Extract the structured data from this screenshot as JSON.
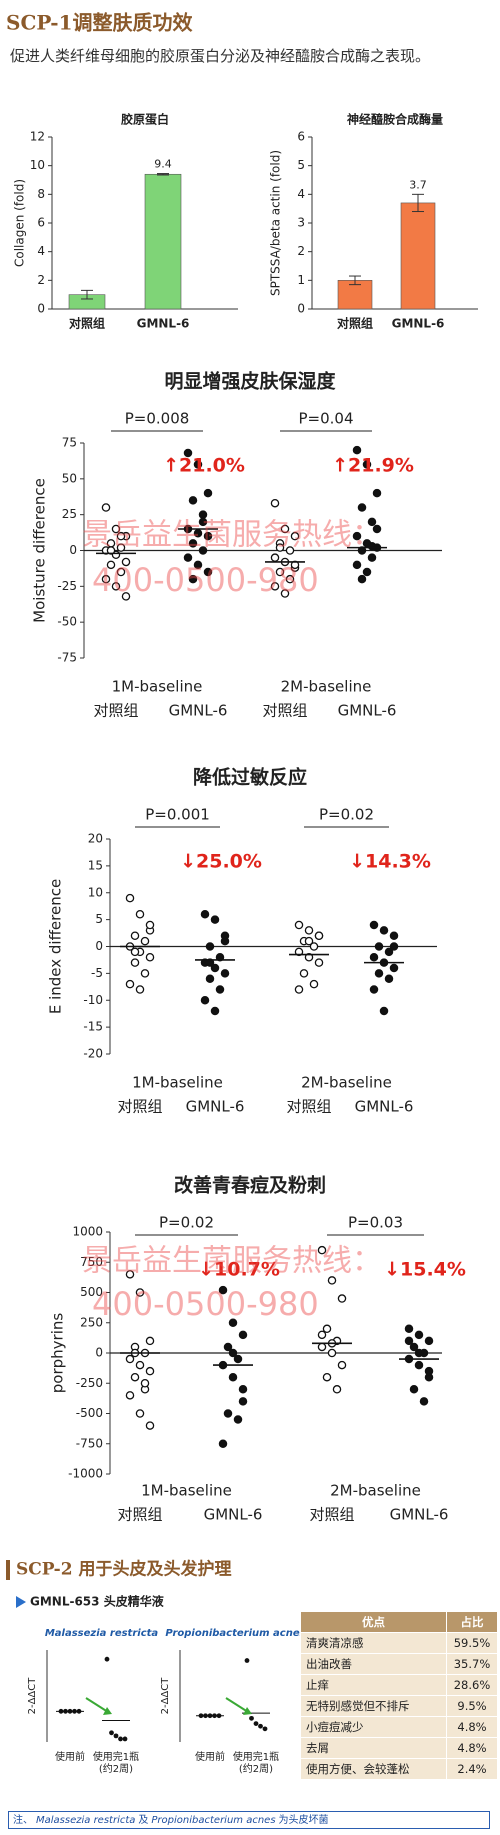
{
  "header": {
    "title": "SCP-1调整肤质功效",
    "subtitle": "促进人类纤维母细胞的胶原蛋白分泌及神经醯胺合成酶之表现。"
  },
  "watermark": [
    "景岳益生菌服务热线：",
    "400-0500-980"
  ],
  "chart_data": [
    {
      "type": "bar",
      "title": "胶原蛋白",
      "ylabel": "Collagen (fold)",
      "categories": [
        "对照组",
        "GMNL-6"
      ],
      "values": [
        1,
        9.4
      ],
      "errors": [
        0.3,
        0.05
      ],
      "labeled": [
        false,
        true
      ],
      "color": "#7fd477",
      "ylim": [
        0,
        12
      ],
      "yticks": [
        0,
        2,
        4,
        6,
        8,
        10,
        12
      ]
    },
    {
      "type": "bar",
      "title": "神经醯胺合成酶量",
      "ylabel": "SPTSSA/beta actin (fold)",
      "categories": [
        "对照组",
        "GMNL-6"
      ],
      "values": [
        1,
        3.7
      ],
      "errors": [
        0.15,
        0.3
      ],
      "labeled": [
        false,
        true
      ],
      "color": "#f27a45",
      "ylim": [
        0,
        6
      ],
      "yticks": [
        0,
        1,
        2,
        3,
        4,
        5,
        6
      ]
    },
    {
      "type": "strip",
      "title": "明显增强皮肤保湿度",
      "ylabel": "Moisture difference",
      "groups": [
        "1M-baseline",
        "2M-baseline"
      ],
      "p_values": [
        "P=0.008",
        "P=0.04"
      ],
      "changes": [
        "↑21.0%",
        "↑21.9%"
      ],
      "ylim": [
        -75,
        75
      ],
      "yticks": [
        -75,
        -50,
        -25,
        0,
        25,
        50,
        75
      ],
      "series": [
        {
          "name": "对照组",
          "marker": "open",
          "values": [
            [
              30,
              15,
              10,
              5,
              2,
              0,
              -3,
              -8,
              -10,
              -15,
              -20,
              -25,
              -32,
              0,
              10
            ],
            [
              33,
              15,
              10,
              5,
              0,
              -5,
              -8,
              -12,
              -15,
              -20,
              -25,
              -30,
              -10,
              2
            ]
          ],
          "means": [
            -2,
            -8
          ]
        },
        {
          "name": "GMNL-6",
          "marker": "filled",
          "values": [
            [
              68,
              60,
              40,
              35,
              20,
              15,
              12,
              10,
              5,
              0,
              -5,
              -10,
              -15,
              -20,
              25
            ],
            [
              70,
              60,
              40,
              30,
              20,
              10,
              5,
              2,
              0,
              -5,
              -10,
              -15,
              15,
              -20,
              3
            ]
          ],
          "means": [
            15,
            2
          ]
        }
      ]
    },
    {
      "type": "strip",
      "title": "降低过敏反应",
      "ylabel": "E index difference",
      "groups": [
        "1M-baseline",
        "2M-baseline"
      ],
      "p_values": [
        "P=0.001",
        "P=0.02"
      ],
      "changes": [
        "↓25.0%",
        "↓14.3%"
      ],
      "ylim": [
        -20,
        20
      ],
      "yticks": [
        -20,
        -15,
        -10,
        -5,
        0,
        5,
        10,
        15,
        20
      ],
      "series": [
        {
          "name": "对照组",
          "marker": "open",
          "values": [
            [
              9,
              6,
              3,
              2,
              1,
              0,
              -1,
              -2,
              -3,
              -5,
              -7,
              -8,
              4,
              -1
            ],
            [
              4,
              3,
              2,
              1,
              0,
              -1,
              -2,
              -3,
              -5,
              -7,
              -8,
              1,
              2
            ]
          ],
          "means": [
            0,
            -1.5
          ]
        },
        {
          "name": "GMNL-6",
          "marker": "filled",
          "values": [
            [
              6,
              5,
              2,
              0,
              -2,
              -3,
              -4,
              -5,
              -6,
              -8,
              -10,
              -12,
              1,
              -3
            ],
            [
              4,
              3,
              2,
              0,
              -1,
              -2,
              -3,
              -4,
              -5,
              -6,
              -8,
              -12,
              0
            ]
          ],
          "means": [
            -2.5,
            -3
          ]
        }
      ]
    },
    {
      "type": "strip",
      "title": "改善青春痘及粉刺",
      "ylabel": "porphyrins",
      "groups": [
        "1M-baseline",
        "2M-baseline"
      ],
      "p_values": [
        "P=0.02",
        "P=0.03"
      ],
      "changes": [
        "↓10.7%",
        "↓15.4%"
      ],
      "ylim": [
        -1000,
        1000
      ],
      "yticks": [
        -1000,
        -750,
        -500,
        -250,
        0,
        250,
        500,
        750,
        1000
      ],
      "series": [
        {
          "name": "对照组",
          "marker": "open",
          "values": [
            [
              650,
              500,
              100,
              50,
              0,
              -50,
              -100,
              -150,
              -200,
              -300,
              -350,
              -500,
              -600,
              0,
              -250
            ],
            [
              850,
              600,
              450,
              200,
              100,
              50,
              0,
              -100,
              -200,
              -300,
              150,
              80
            ]
          ],
          "means": [
            0,
            80
          ]
        },
        {
          "name": "GMNL-6",
          "marker": "filled",
          "values": [
            [
              520,
              250,
              150,
              50,
              -50,
              -100,
              -200,
              -300,
              -500,
              -550,
              -750,
              0,
              -400
            ],
            [
              200,
              150,
              100,
              50,
              0,
              -50,
              -100,
              -200,
              -300,
              -400,
              100,
              0,
              -150
            ]
          ],
          "means": [
            -100,
            -50
          ]
        }
      ]
    },
    {
      "type": "dot",
      "title": "Malassezia restricta",
      "ylabel": "2-ΔΔCT",
      "categories": [
        "使用前",
        "使用完1瓶\n(约2周)"
      ],
      "values": [
        [
          1,
          1,
          1,
          1,
          1
        ],
        [
          2.7,
          0.3,
          0.2,
          0.1,
          0.1
        ]
      ],
      "means": [
        1,
        0.7
      ],
      "ylim": [
        0,
        3
      ]
    },
    {
      "type": "dot",
      "title": "Propionibacterium acnes",
      "ylabel": "2-ΔΔCT",
      "categories": [
        "使用前",
        "使用完1瓶\n(约2周)"
      ],
      "values": [
        [
          1,
          1,
          1,
          1,
          1
        ],
        [
          3.1,
          0.9,
          0.7,
          0.6,
          0.5
        ]
      ],
      "means": [
        1,
        1.1
      ],
      "ylim": [
        0,
        3.5
      ]
    }
  ],
  "section2": {
    "title": "SCP-2 用于头皮及头发护理",
    "product": "GMNL-653 头皮精华液"
  },
  "table": {
    "header": [
      "优点",
      "占比"
    ],
    "rows": [
      [
        "清爽清凉感",
        "59.5%"
      ],
      [
        "出油改善",
        "35.7%"
      ],
      [
        "止痒",
        "28.6%"
      ],
      [
        "无特别感觉但不排斥",
        "9.5%"
      ],
      [
        "小痘痘减少",
        "4.8%"
      ],
      [
        "去屑",
        "4.8%"
      ],
      [
        "使用方便、会较蓬松",
        "2.4%"
      ]
    ]
  },
  "note": [
    "注、",
    "Malassezia restricta",
    "及",
    "Propionibacterium acnes",
    "为头皮坏菌"
  ]
}
